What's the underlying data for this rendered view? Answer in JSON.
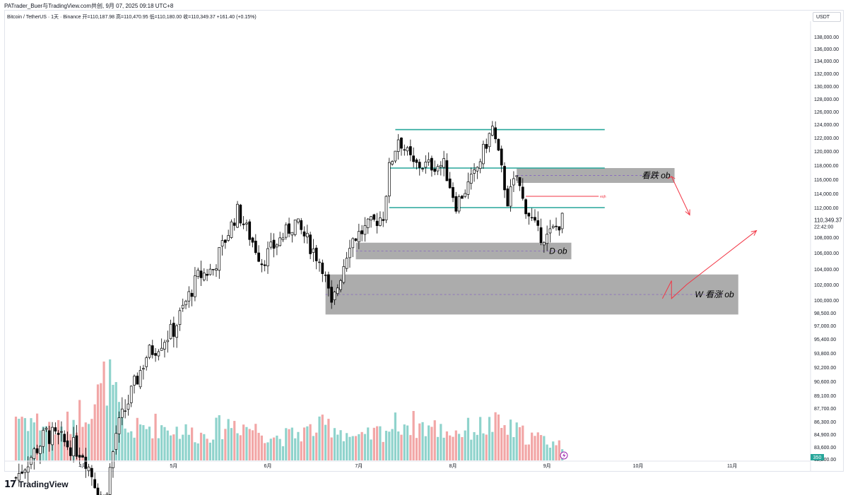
{
  "header": {
    "credit": "PATrader_Buer与TradingView.com共创, 9月 07, 2025 09:18 UTC+8",
    "symbol_line": "Bitcoin / TetherUS · 1天 · Binance  开=110,187.98  高=110,470.95  低=110,180.00  收=110,349.37  +161.40 (+0.15%)"
  },
  "currency": "USDT",
  "footer": {
    "brand": "TradingView",
    "logo_icon": "tradingview-logo-icon"
  },
  "price_badge": {
    "price": "110,349.37",
    "time": "22:42:00"
  },
  "volume_badge": "350",
  "lightning_icon": "lightning-icon",
  "colors": {
    "up": "#000000",
    "down": "#000000",
    "vol_up": "#8fd3cc",
    "vol_down": "#f2a6a6",
    "teal_line": "#26a69a",
    "zone": "#9e9e9e",
    "arrow": "#f23645",
    "badge_green": "#26a69a"
  },
  "chart_data": {
    "type": "candlestick",
    "price_axis_labels": [
      "138,000.00",
      "136,000.00",
      "134,000.00",
      "132,000.00",
      "130,000.00",
      "128,000.00",
      "126,000.00",
      "124,000.00",
      "122,000.00",
      "120,000.00",
      "118,000.00",
      "116,000.00",
      "114,000.00",
      "112,000.00",
      "108,000.00",
      "106,000.00",
      "104,000.00",
      "102,000.00",
      "100,000.00",
      "98,500.00",
      "97,000.00",
      "95,400.00",
      "93,800.00",
      "92,200.00",
      "90,600.00",
      "89,100.00",
      "87,700.00",
      "86,300.00",
      "84,900.00",
      "83,600.00",
      "82,200.00"
    ],
    "x_tick_labels": [
      "4月",
      "5月",
      "6月",
      "7月",
      "8月",
      "9月",
      "10月",
      "11月"
    ],
    "ohlc_anchors": [
      [
        "2025-03-10",
        80000
      ],
      [
        "2025-03-20",
        85000
      ],
      [
        "2025-04-01",
        83000
      ],
      [
        "2025-04-08",
        77000
      ],
      [
        "2025-04-12",
        85000
      ],
      [
        "2025-04-22",
        93500
      ],
      [
        "2025-05-01",
        96500
      ],
      [
        "2025-05-09",
        103000
      ],
      [
        "2025-05-14",
        104000
      ],
      [
        "2025-05-22",
        111500
      ],
      [
        "2025-05-30",
        105000
      ],
      [
        "2025-06-10",
        110000
      ],
      [
        "2025-06-19",
        104500
      ],
      [
        "2025-06-22",
        99000
      ],
      [
        "2025-06-28",
        107500
      ],
      [
        "2025-07-09",
        111000
      ],
      [
        "2025-07-11",
        117500
      ],
      [
        "2025-07-14",
        122000
      ],
      [
        "2025-07-19",
        118000
      ],
      [
        "2025-07-29",
        118000
      ],
      [
        "2025-08-02",
        112500
      ],
      [
        "2025-08-08",
        116500
      ],
      [
        "2025-08-14",
        123500
      ],
      [
        "2025-08-19",
        113000
      ],
      [
        "2025-08-22",
        116500
      ],
      [
        "2025-08-24",
        113000
      ],
      [
        "2025-08-29",
        108500
      ],
      [
        "2025-09-01",
        108000
      ],
      [
        "2025-09-06",
        110350
      ]
    ],
    "volume_anchors": [
      [
        "2025-03-10",
        0.45
      ],
      [
        "2025-03-25",
        0.3
      ],
      [
        "2025-04-07",
        0.65
      ],
      [
        "2025-04-09",
        0.85
      ],
      [
        "2025-04-15",
        0.28
      ],
      [
        "2025-04-25",
        0.35
      ],
      [
        "2025-05-10",
        0.25
      ],
      [
        "2025-05-21",
        0.38
      ],
      [
        "2025-06-05",
        0.22
      ],
      [
        "2025-06-22",
        0.35
      ],
      [
        "2025-07-01",
        0.2
      ],
      [
        "2025-07-11",
        0.32
      ],
      [
        "2025-07-15",
        0.38
      ],
      [
        "2025-08-01",
        0.28
      ],
      [
        "2025-08-15",
        0.35
      ],
      [
        "2025-08-25",
        0.25
      ],
      [
        "2025-09-06",
        0.15
      ]
    ],
    "levels": [
      {
        "price": 123200,
        "from": "2025-07-13",
        "to": "2025-09-20"
      },
      {
        "price": 117600,
        "from": "2025-07-11",
        "to": "2025-09-20"
      },
      {
        "price": 112000,
        "from": "2025-07-11",
        "to": "2025-09-20"
      }
    ],
    "eqh": {
      "label": "eqh",
      "price": 113600,
      "from": "2025-08-25",
      "to": "2025-09-18"
    },
    "zones": [
      {
        "label": "看跌 ob",
        "top": 117600,
        "bottom": 115500,
        "from": "2025-08-22",
        "to": "2025-10-13"
      },
      {
        "label": "D ob",
        "top": 107300,
        "bottom": 105200,
        "from": "2025-06-30",
        "to": "2025-09-09"
      },
      {
        "label": "W 看涨 ob",
        "top": 103300,
        "bottom": 98300,
        "from": "2025-06-20",
        "to": "2025-11-03"
      }
    ],
    "projection": [
      [
        "2025-10-12",
        116400
      ],
      [
        "2025-10-18",
        111000
      ],
      [
        "2025-10-09",
        100200
      ],
      [
        "2025-10-12",
        102500
      ],
      [
        "2025-10-12",
        100200
      ],
      [
        "2025-10-17",
        102000
      ],
      [
        "2025-11-09",
        108900
      ]
    ]
  }
}
